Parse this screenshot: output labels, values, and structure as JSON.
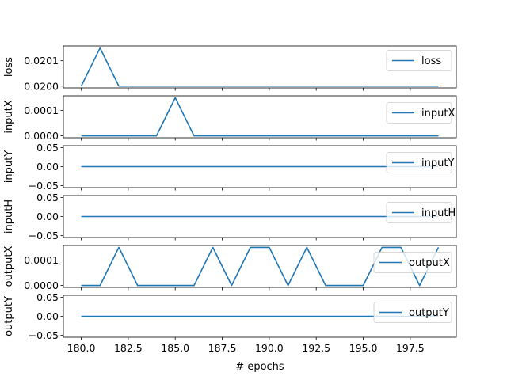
{
  "chart_data": {
    "type": "line",
    "xlabel": "# epochs",
    "xlim": [
      179.05,
      199.95
    ],
    "xticks": [
      180.0,
      182.5,
      185.0,
      187.5,
      190.0,
      192.5,
      195.0,
      197.5
    ],
    "xtick_labels": [
      "180.0",
      "182.5",
      "185.0",
      "187.5",
      "190.0",
      "192.5",
      "195.0",
      "197.5"
    ],
    "line_color": "#1f77b4",
    "x": [
      180,
      181,
      182,
      183,
      184,
      185,
      186,
      187,
      188,
      189,
      190,
      191,
      192,
      193,
      194,
      195,
      196,
      197,
      198,
      199
    ],
    "subplots": [
      {
        "ylabel": "loss",
        "legend": "loss",
        "legend_loc": "right",
        "ylim": [
          0.019993,
          0.020158
        ],
        "yticks": [
          0.02,
          0.0201
        ],
        "ytick_labels": [
          "0.0200",
          "0.0201"
        ],
        "values": [
          0.02,
          0.02015,
          0.02,
          0.02,
          0.02,
          0.02,
          0.02,
          0.02,
          0.02,
          0.02,
          0.02,
          0.02,
          0.02,
          0.02,
          0.02,
          0.02,
          0.02,
          0.02,
          0.02,
          0.02
        ]
      },
      {
        "ylabel": "inputX",
        "legend": "inputX",
        "legend_loc": "right",
        "ylim": [
          -7.5e-06,
          0.0001575
        ],
        "yticks": [
          0.0,
          0.0001
        ],
        "ytick_labels": [
          "0.0000",
          "0.0001"
        ],
        "values": [
          0,
          0,
          0,
          0,
          0,
          0.00015,
          0,
          0,
          0,
          0,
          0,
          0,
          0,
          0,
          0,
          0,
          0,
          0,
          0,
          0
        ]
      },
      {
        "ylabel": "inputY",
        "legend": "inputY",
        "legend_loc": "right",
        "ylim": [
          -0.055,
          0.055
        ],
        "yticks": [
          -0.05,
          0.0,
          0.05
        ],
        "ytick_labels": [
          "−0.05",
          "0.00",
          "0.05"
        ],
        "values": [
          0,
          0,
          0,
          0,
          0,
          0,
          0,
          0,
          0,
          0,
          0,
          0,
          0,
          0,
          0,
          0,
          0,
          0,
          0,
          0
        ]
      },
      {
        "ylabel": "inputH",
        "legend": "inputH",
        "legend_loc": "right",
        "ylim": [
          -0.055,
          0.055
        ],
        "yticks": [
          -0.05,
          0.0,
          0.05
        ],
        "ytick_labels": [
          "−0.05",
          "0.00",
          "0.05"
        ],
        "values": [
          0,
          0,
          0,
          0,
          0,
          0,
          0,
          0,
          0,
          0,
          0,
          0,
          0,
          0,
          0,
          0,
          0,
          0,
          0,
          0
        ]
      },
      {
        "ylabel": "outputX",
        "legend": "outputX",
        "legend_loc": "right",
        "ylim": [
          -7.5e-06,
          0.0001575
        ],
        "yticks": [
          0.0,
          0.0001
        ],
        "ytick_labels": [
          "0.0000",
          "0.0001"
        ],
        "values": [
          0,
          0,
          0.00015,
          0,
          0,
          0,
          0,
          0.00015,
          0,
          0.00015,
          0.00015,
          0,
          0.00015,
          0,
          0,
          0,
          0.00015,
          0.00015,
          0,
          0.00015
        ]
      },
      {
        "ylabel": "outputY",
        "legend": "outputY",
        "legend_loc": "right",
        "ylim": [
          -0.055,
          0.055
        ],
        "yticks": [
          -0.05,
          0.0,
          0.05
        ],
        "ytick_labels": [
          "−0.05",
          "0.00",
          "0.05"
        ],
        "values": [
          0,
          0,
          0,
          0,
          0,
          0,
          0,
          0,
          0,
          0,
          0,
          0,
          0,
          0,
          0,
          0,
          0,
          0,
          0,
          0
        ]
      }
    ]
  }
}
